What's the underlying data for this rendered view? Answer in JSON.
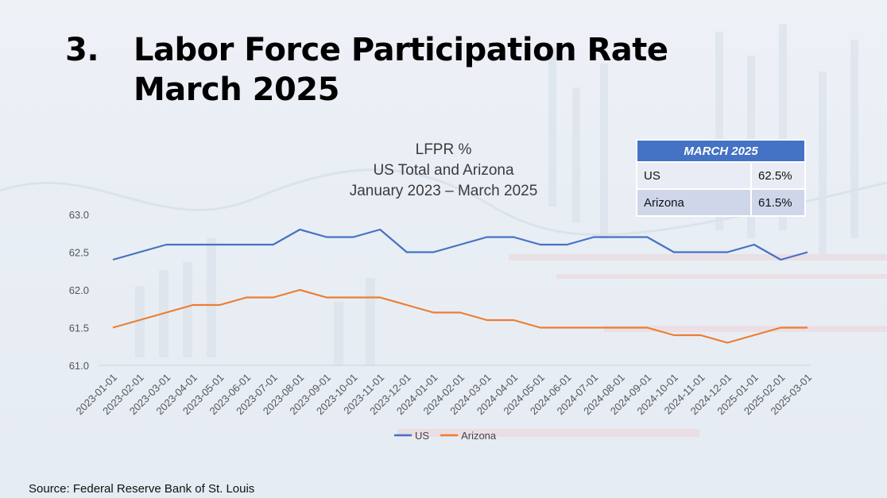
{
  "slide": {
    "number": "3.",
    "title_line1": "Labor Force Participation Rate",
    "title_line2": "March 2025",
    "source": "Source: Federal Reserve Bank of St. Louis"
  },
  "table": {
    "header": "MARCH 2025",
    "rows": [
      {
        "label": "US",
        "value": "62.5%"
      },
      {
        "label": "Arizona",
        "value": "61.5%"
      }
    ]
  },
  "chart_data": {
    "type": "line",
    "title_lines": [
      "LFPR %",
      "US Total and Arizona",
      "January 2023 – March 2025"
    ],
    "xlabel": "",
    "ylabel": "",
    "ylim": [
      61.0,
      63.0
    ],
    "y_ticks": [
      "61.0",
      "61.5",
      "62.0",
      "62.5",
      "63.0"
    ],
    "grid": false,
    "legend_position": "bottom",
    "x": [
      "2023-01-01",
      "2023-02-01",
      "2023-03-01",
      "2023-04-01",
      "2023-05-01",
      "2023-06-01",
      "2023-07-01",
      "2023-08-01",
      "2023-09-01",
      "2023-10-01",
      "2023-11-01",
      "2023-12-01",
      "2024-01-01",
      "2024-02-01",
      "2024-03-01",
      "2024-04-01",
      "2024-05-01",
      "2024-06-01",
      "2024-07-01",
      "2024-08-01",
      "2024-09-01",
      "2024-10-01",
      "2024-11-01",
      "2024-12-01",
      "2025-01-01",
      "2025-02-01",
      "2025-03-01"
    ],
    "series": [
      {
        "name": "US",
        "color": "#4472c4",
        "values": [
          62.4,
          62.5,
          62.6,
          62.6,
          62.6,
          62.6,
          62.6,
          62.8,
          62.7,
          62.7,
          62.8,
          62.5,
          62.5,
          62.6,
          62.7,
          62.7,
          62.6,
          62.6,
          62.7,
          62.7,
          62.7,
          62.5,
          62.5,
          62.5,
          62.6,
          62.4,
          62.5
        ]
      },
      {
        "name": "Arizona",
        "color": "#ed7d31",
        "values": [
          61.5,
          61.6,
          61.7,
          61.8,
          61.8,
          61.9,
          61.9,
          62.0,
          61.9,
          61.9,
          61.9,
          61.8,
          61.7,
          61.7,
          61.6,
          61.6,
          61.5,
          61.5,
          61.5,
          61.5,
          61.5,
          61.4,
          61.4,
          61.3,
          61.4,
          61.5,
          61.5
        ]
      }
    ]
  }
}
